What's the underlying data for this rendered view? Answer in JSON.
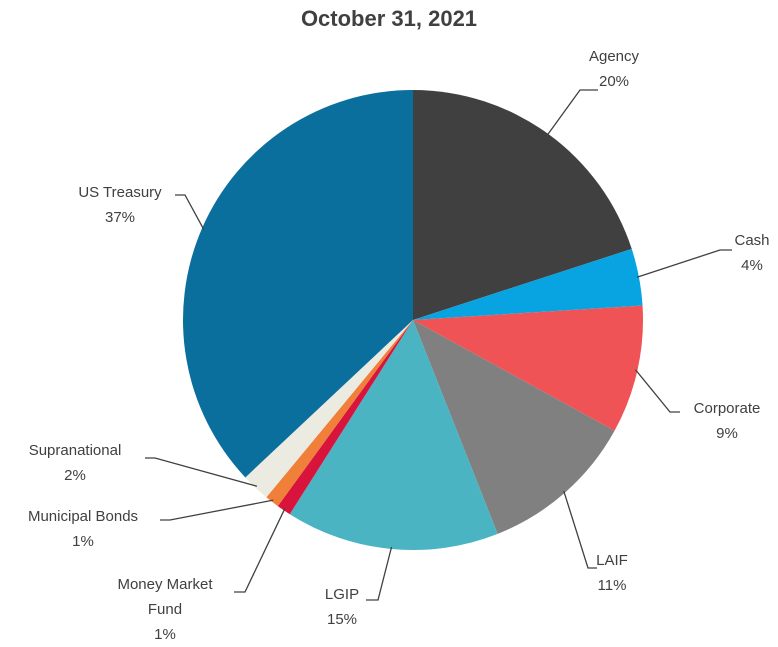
{
  "chart_data": {
    "type": "pie",
    "title": "October 31, 2021",
    "categories": [
      "Agency",
      "Cash",
      "Corporate",
      "LAIF",
      "LGIP",
      "Money Market Fund",
      "Municipal Bonds",
      "Supranational",
      "US Treasury"
    ],
    "values": [
      20,
      4,
      9,
      11,
      15,
      1,
      1,
      2,
      37
    ],
    "value_labels": [
      "20%",
      "4%",
      "9%",
      "11%",
      "15%",
      "1%",
      "1%",
      "2%",
      "37%"
    ],
    "colors": [
      "#404040",
      "#08a4e2",
      "#ef5356",
      "#808080",
      "#4bb4c2",
      "#d8143d",
      "#f07f3a",
      "#ecebe2",
      "#0b6f9e"
    ]
  }
}
